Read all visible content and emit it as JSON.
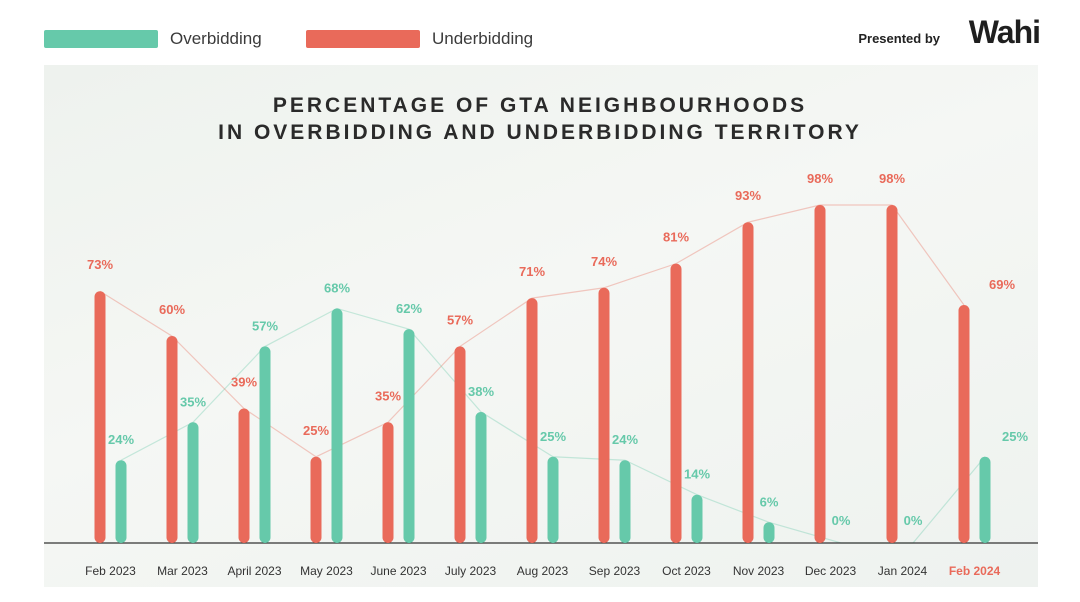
{
  "legend": [
    {
      "label": "Overbidding",
      "color": "#66c9aa"
    },
    {
      "label": "Underbidding",
      "color": "#e96a5a"
    }
  ],
  "brand": {
    "presented_by": "Presented by",
    "logo_text": "Wahi"
  },
  "chart_data": {
    "type": "bar",
    "title_line1": "PERCENTAGE OF GTA NEIGHBOURHOODS",
    "title_line2": "IN OVERBIDDING AND UNDERBIDDING TERRITORY",
    "categories": [
      "Feb 2023",
      "Mar 2023",
      "April 2023",
      "May 2023",
      "June 2023",
      "July 2023",
      "Aug 2023",
      "Sep 2023",
      "Oct 2023",
      "Nov 2023",
      "Dec 2023",
      "Jan 2024",
      "Feb 2024"
    ],
    "series": [
      {
        "name": "Underbidding",
        "color": "#e96a5a",
        "values": [
          73,
          60,
          39,
          25,
          35,
          57,
          71,
          74,
          81,
          93,
          98,
          98,
          69
        ]
      },
      {
        "name": "Overbidding",
        "color": "#66c9aa",
        "values": [
          24,
          35,
          57,
          68,
          62,
          38,
          25,
          24,
          14,
          6,
          0,
          0,
          25
        ]
      }
    ],
    "data_labels": {
      "Underbidding": [
        "73%",
        "60%",
        "39%",
        "25%",
        "35%",
        "57%",
        "71%",
        "74%",
        "81%",
        "93%",
        "98%",
        "98%",
        "69%"
      ],
      "Overbidding": [
        "24%",
        "35%",
        "57%",
        "68%",
        "62%",
        "38%",
        "25%",
        "24%",
        "14%",
        "6%",
        "0%",
        "0%",
        "25%"
      ]
    },
    "highlight_category": "Feb 2024",
    "ylim": [
      0,
      100
    ],
    "legend_position": "top-left",
    "grid": false
  }
}
